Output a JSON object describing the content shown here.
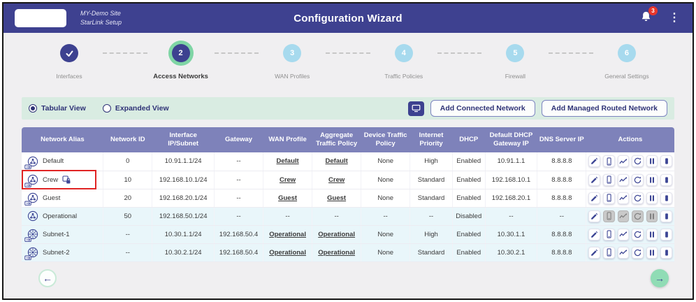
{
  "colors": {
    "page_bg": "#f0eff1",
    "header_bg": "#3e4190",
    "accent": "#3d4190",
    "accent_text": "#2e3276",
    "step_todo": "#a7daee",
    "active_ring": "#7fd5a5",
    "toolbar_bg": "#d9ece2",
    "table_header_bg": "#7e82ba",
    "row_tint": "#e9f6fa",
    "annotation_red": "#e02424",
    "badge_red": "#e8362c",
    "next_green": "#90dcb5",
    "icon_blue": "#3d4695"
  },
  "header": {
    "site_name": "MY-Demo Site",
    "site_subtitle": "StarLink Setup",
    "title": "Configuration Wizard",
    "notification_count": "3",
    "menu_icon": "⋮",
    "icons": {
      "bell": "bell-icon",
      "menu": "kebab-menu-icon"
    }
  },
  "stepper": {
    "steps": [
      {
        "number": "1",
        "label": "Interfaces",
        "state": "done"
      },
      {
        "number": "2",
        "label": "Access Networks",
        "state": "active"
      },
      {
        "number": "3",
        "label": "WAN Profiles",
        "state": "todo"
      },
      {
        "number": "4",
        "label": "Traffic Policies",
        "state": "todo"
      },
      {
        "number": "5",
        "label": "Firewall",
        "state": "todo"
      },
      {
        "number": "6",
        "label": "General Settings",
        "state": "todo"
      }
    ]
  },
  "toolbar": {
    "view_options": [
      {
        "label": "Tabular View",
        "selected": true
      },
      {
        "label": "Expanded View",
        "selected": false
      }
    ],
    "display_icon": "monitor-icon",
    "add_connected_label": "Add Connected Network",
    "add_managed_label": "Add Managed Routed Network"
  },
  "table": {
    "columns": [
      "Network Alias",
      "Network ID",
      "Interface IP/Subnet",
      "Gateway",
      "WAN Profile",
      "Aggregate Traffic Policy",
      "Device Traffic Policy",
      "Internet Priority",
      "DHCP",
      "Default DHCP Gateway IP",
      "DNS Server IP",
      "Actions"
    ],
    "action_icons": [
      "edit-pencil",
      "device",
      "activity-graph",
      "renew-sync",
      "pause",
      "stop"
    ],
    "rows": [
      {
        "alias": "Default",
        "icon": "bridged-network",
        "locked": false,
        "highlighted": false,
        "tinted": false,
        "network_id": "0",
        "ip_subnet": "10.91.1.1/24",
        "gateway": "--",
        "wan_profile": "Default",
        "aggregate_traffic_policy": "Default",
        "device_traffic_policy": "None",
        "internet_priority": "High",
        "dhcp": "Enabled",
        "default_dhcp_gateway_ip": "10.91.1.1",
        "dns_server_ip": "8.8.8.8",
        "actions_disabled": []
      },
      {
        "alias": "Crew",
        "icon": "bridged-network",
        "locked": true,
        "highlighted": true,
        "tinted": false,
        "network_id": "10",
        "ip_subnet": "192.168.10.1/24",
        "gateway": "--",
        "wan_profile": "Crew",
        "aggregate_traffic_policy": "Crew",
        "device_traffic_policy": "None",
        "internet_priority": "Standard",
        "dhcp": "Enabled",
        "default_dhcp_gateway_ip": "192.168.10.1",
        "dns_server_ip": "8.8.8.8",
        "actions_disabled": []
      },
      {
        "alias": "Guest",
        "icon": "bridged-network",
        "locked": false,
        "highlighted": false,
        "tinted": false,
        "network_id": "20",
        "ip_subnet": "192.168.20.1/24",
        "gateway": "--",
        "wan_profile": "Guest",
        "aggregate_traffic_policy": "Guest",
        "device_traffic_policy": "None",
        "internet_priority": "Standard",
        "dhcp": "Enabled",
        "default_dhcp_gateway_ip": "192.168.20.1",
        "dns_server_ip": "8.8.8.8",
        "actions_disabled": []
      },
      {
        "alias": "Operational",
        "icon": "plain-network",
        "locked": false,
        "highlighted": false,
        "tinted": true,
        "network_id": "50",
        "ip_subnet": "192.168.50.1/24",
        "gateway": "--",
        "wan_profile": "--",
        "aggregate_traffic_policy": "--",
        "device_traffic_policy": "--",
        "internet_priority": "--",
        "dhcp": "Disabled",
        "default_dhcp_gateway_ip": "--",
        "dns_server_ip": "--",
        "actions_disabled": [
          "device",
          "activity",
          "renew",
          "pause"
        ]
      },
      {
        "alias": "Subnet-1",
        "icon": "subnet-network",
        "locked": false,
        "highlighted": false,
        "tinted": true,
        "network_id": "--",
        "ip_subnet": "10.30.1.1/24",
        "gateway": "192.168.50.4",
        "wan_profile": "Operational",
        "aggregate_traffic_policy": "Operational",
        "device_traffic_policy": "None",
        "internet_priority": "High",
        "dhcp": "Enabled",
        "default_dhcp_gateway_ip": "10.30.1.1",
        "dns_server_ip": "8.8.8.8",
        "actions_disabled": []
      },
      {
        "alias": "Subnet-2",
        "icon": "subnet-network",
        "locked": false,
        "highlighted": false,
        "tinted": true,
        "network_id": "--",
        "ip_subnet": "10.30.2.1/24",
        "gateway": "192.168.50.4",
        "wan_profile": "Operational",
        "aggregate_traffic_policy": "Operational",
        "device_traffic_policy": "None",
        "internet_priority": "Standard",
        "dhcp": "Enabled",
        "default_dhcp_gateway_ip": "10.30.2.1",
        "dns_server_ip": "8.8.8.8",
        "actions_disabled": []
      }
    ]
  },
  "footer": {
    "back_arrow": "←",
    "next_arrow": "→"
  }
}
